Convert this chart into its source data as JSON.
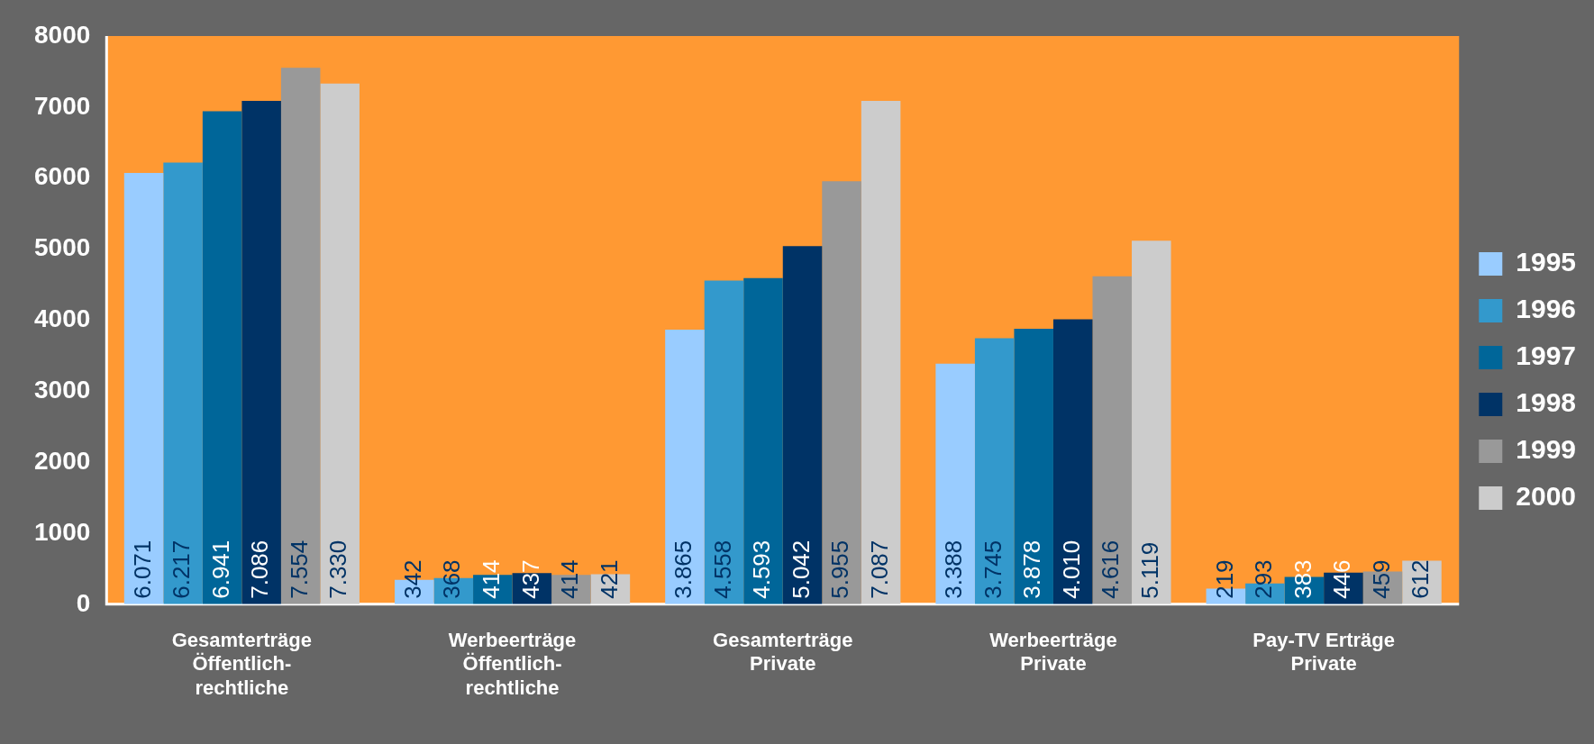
{
  "chart_data": {
    "type": "bar",
    "categories": [
      "Gesamterträge Öffentlich-rechtliche",
      "Werbeerträge Öffentlich-rechtliche",
      "Gesamterträge Private",
      "Werbeerträge Private",
      "Pay-TV Erträge Private"
    ],
    "series": [
      {
        "name": "1995",
        "color": "#99ccff",
        "values": [
          6071,
          342,
          3865,
          3388,
          219
        ],
        "value_labels": [
          "6.071",
          "342",
          "3.865",
          "3.388",
          "219"
        ]
      },
      {
        "name": "1996",
        "color": "#3399cc",
        "values": [
          6217,
          368,
          4558,
          3745,
          293
        ],
        "value_labels": [
          "6.217",
          "368",
          "4.558",
          "3.745",
          "293"
        ]
      },
      {
        "name": "1997",
        "color": "#006699",
        "values": [
          6941,
          414,
          4593,
          3878,
          383
        ],
        "value_labels": [
          "6.941",
          "414",
          "4.593",
          "3.878",
          "383"
        ]
      },
      {
        "name": "1998",
        "color": "#003366",
        "values": [
          7086,
          437,
          5042,
          4010,
          446
        ],
        "value_labels": [
          "7.086",
          "437",
          "5.042",
          "4.010",
          "446"
        ]
      },
      {
        "name": "1999",
        "color": "#999999",
        "values": [
          7554,
          414,
          5955,
          4616,
          459
        ],
        "value_labels": [
          "7.554",
          "414",
          "5.955",
          "4.616",
          "459"
        ]
      },
      {
        "name": "2000",
        "color": "#cccccc",
        "values": [
          7330,
          421,
          7087,
          5119,
          612
        ],
        "value_labels": [
          "7.330",
          "421",
          "7.087",
          "5.119",
          "612"
        ]
      }
    ],
    "ylim": [
      0,
      8000
    ],
    "yticks": [
      0,
      1000,
      2000,
      3000,
      4000,
      5000,
      6000,
      7000,
      8000
    ],
    "grid": false,
    "legend": "right"
  }
}
